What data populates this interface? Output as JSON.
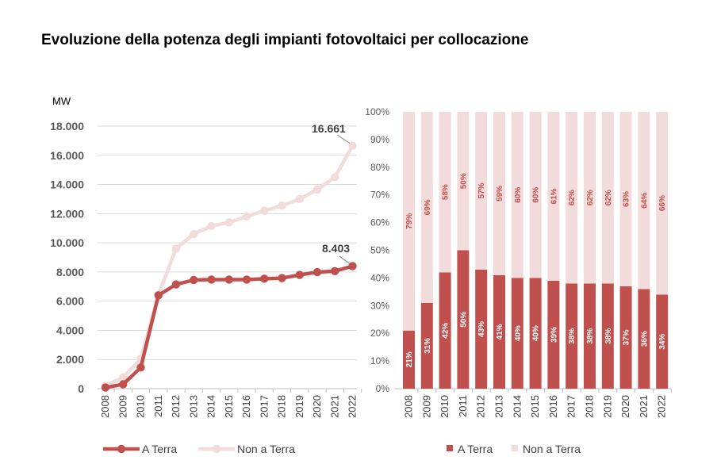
{
  "title": "Evoluzione della potenza degli impianti fotovoltaici per collocazione",
  "colors": {
    "a_terra": "#c0504d",
    "non_a_terra": "#f2dcdb",
    "grid": "#d9d9d9",
    "axis": "#bfbfbf"
  },
  "chart_data": [
    {
      "type": "line",
      "ylabel": "MW",
      "ylim": [
        0,
        18000
      ],
      "yticks": [
        "0",
        "2.000",
        "4.000",
        "6.000",
        "8.000",
        "10.000",
        "12.000",
        "14.000",
        "16.000",
        "18.000"
      ],
      "categories": [
        "2008",
        "2009",
        "2010",
        "2011",
        "2012",
        "2013",
        "2014",
        "2015",
        "2016",
        "2017",
        "2018",
        "2019",
        "2020",
        "2021",
        "2022"
      ],
      "series": [
        {
          "name": "A Terra",
          "values": [
            80,
            300,
            1450,
            6400,
            7150,
            7450,
            7480,
            7480,
            7480,
            7540,
            7580,
            7800,
            7990,
            8060,
            8403
          ]
        },
        {
          "name": "Non a Terra",
          "values": [
            200,
            770,
            2050,
            6450,
            9600,
            10600,
            11150,
            11400,
            11800,
            12200,
            12550,
            13000,
            13650,
            14500,
            16661
          ]
        }
      ],
      "annotations": [
        {
          "text": "16.661",
          "series": "Non a Terra",
          "category": "2022"
        },
        {
          "text": "8.403",
          "series": "A Terra",
          "category": "2022"
        }
      ],
      "legend": "bottom"
    },
    {
      "type": "bar",
      "stacked": true,
      "ylim": [
        0,
        100
      ],
      "yticks": [
        "0%",
        "10%",
        "20%",
        "30%",
        "40%",
        "50%",
        "60%",
        "70%",
        "80%",
        "90%",
        "100%"
      ],
      "categories": [
        "2008",
        "2009",
        "2010",
        "2011",
        "2012",
        "2013",
        "2014",
        "2015",
        "2016",
        "2017",
        "2018",
        "2019",
        "2020",
        "2021",
        "2022"
      ],
      "series": [
        {
          "name": "A Terra",
          "values": [
            21,
            31,
            42,
            50,
            43,
            41,
            40,
            40,
            39,
            38,
            38,
            38,
            37,
            36,
            34
          ],
          "labels": [
            "21%",
            "31%",
            "42%",
            "50%",
            "43%",
            "41%",
            "40%",
            "40%",
            "39%",
            "38%",
            "38%",
            "38%",
            "37%",
            "36%",
            "34%"
          ]
        },
        {
          "name": "Non a Terra",
          "values": [
            79,
            69,
            58,
            50,
            57,
            59,
            60,
            60,
            61,
            62,
            62,
            62,
            63,
            64,
            66
          ],
          "labels": [
            "79%",
            "69%",
            "58%",
            "50%",
            "57%",
            "59%",
            "60%",
            "60%",
            "61%",
            "62%",
            "62%",
            "62%",
            "63%",
            "64%",
            "66%"
          ]
        }
      ],
      "legend": "bottom"
    }
  ]
}
